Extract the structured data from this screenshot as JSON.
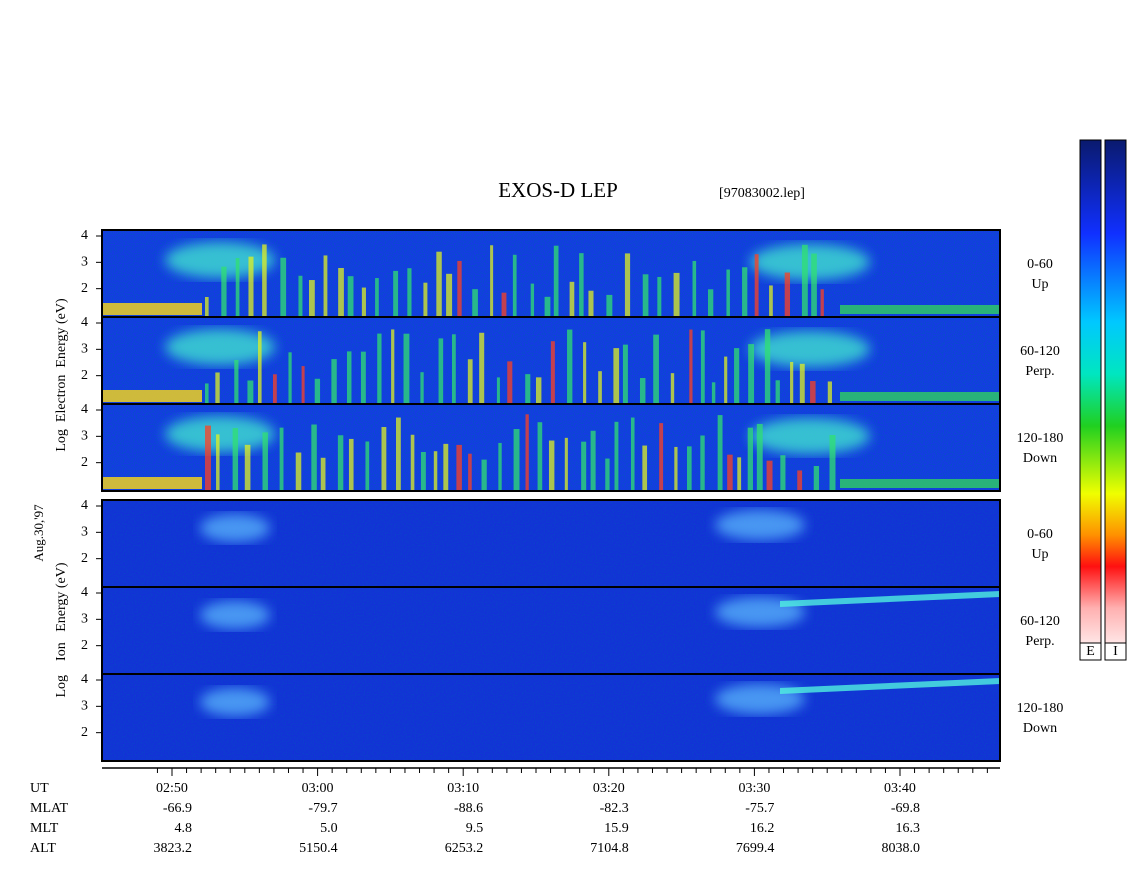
{
  "title": "EXOS-D LEP",
  "file": "[97083002.lep]",
  "date": "Aug.30,'97",
  "electron_axis_label": "Log  Electron  Energy (eV)",
  "ion_axis_label": "Log    Ion   Energy (eV)",
  "energy_ticks": [
    2,
    3,
    4
  ],
  "electron_panels": [
    {
      "angle": "0-60",
      "direction": "Up"
    },
    {
      "angle": "60-120",
      "direction": "Perp."
    },
    {
      "angle": "120-180",
      "direction": "Down"
    }
  ],
  "ion_panels": [
    {
      "angle": "0-60",
      "direction": "Up"
    },
    {
      "angle": "60-120",
      "direction": "Perp."
    },
    {
      "angle": "120-180",
      "direction": "Down"
    }
  ],
  "colorbar_labels": [
    "E",
    "I"
  ],
  "time_axis": {
    "row_labels": [
      "UT",
      "MLAT",
      "MLT",
      "ALT"
    ],
    "columns": [
      [
        "02:50",
        "-66.9",
        "4.8",
        "3823.2"
      ],
      [
        "03:00",
        "-79.7",
        "5.0",
        "5150.4"
      ],
      [
        "03:10",
        "-88.6",
        "9.5",
        "6253.2"
      ],
      [
        "03:20",
        "-82.3",
        "15.9",
        "7104.8"
      ],
      [
        "03:30",
        "-75.7",
        "16.2",
        "7699.4"
      ],
      [
        "03:40",
        "-69.8",
        "16.3",
        "8038.0"
      ]
    ]
  }
}
